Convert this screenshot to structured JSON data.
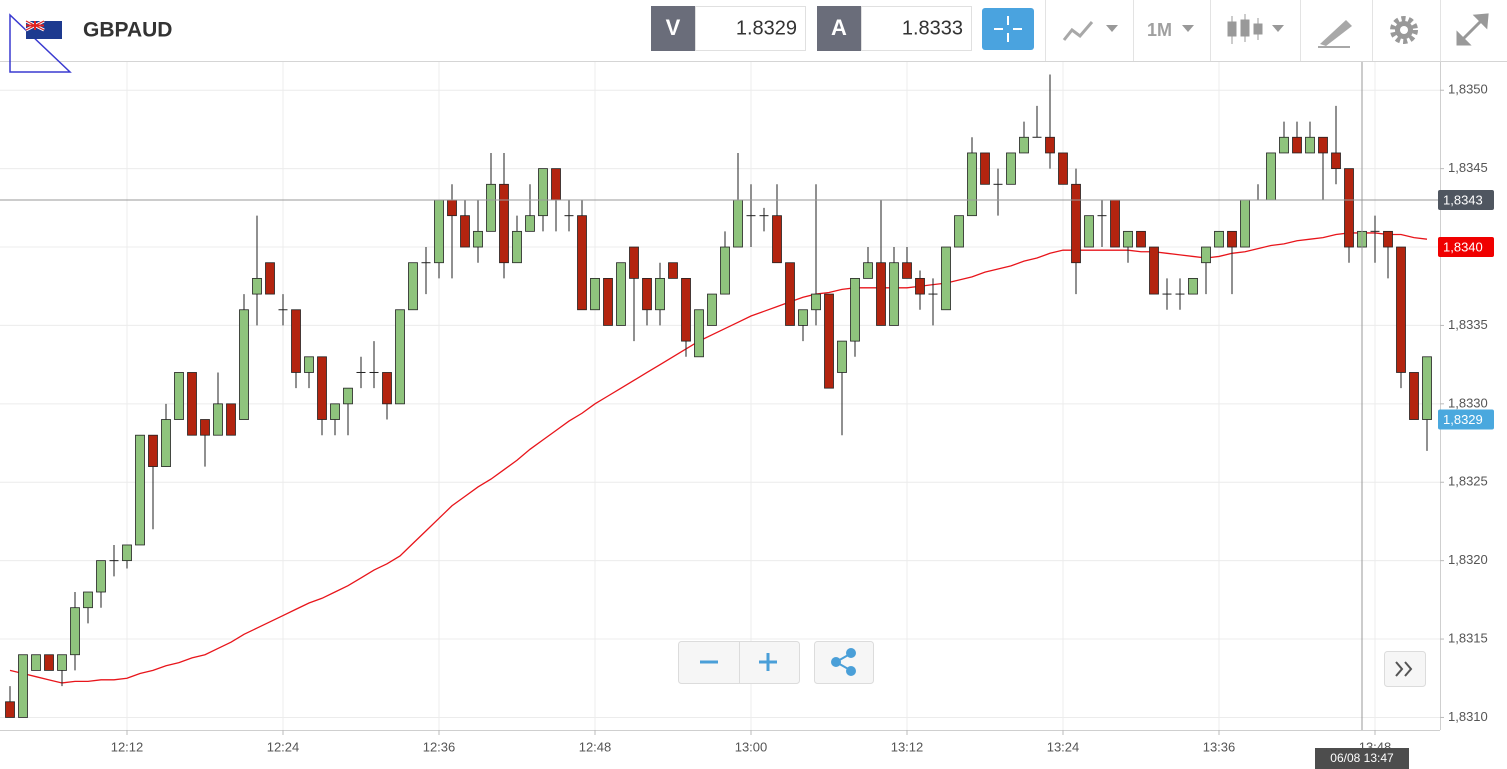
{
  "header": {
    "symbol": "GBPAUD",
    "bid_label": "V",
    "bid": 1.8329,
    "ask_label": "A",
    "ask": 1.8333,
    "timeframe": "1M"
  },
  "chart_data": {
    "type": "candlestick",
    "x": [
      "12:03",
      "12:04",
      "12:05",
      "12:06",
      "12:07",
      "12:08",
      "12:09",
      "12:10",
      "12:11",
      "12:12",
      "12:13",
      "12:14",
      "12:15",
      "12:16",
      "12:17",
      "12:18",
      "12:19",
      "12:20",
      "12:21",
      "12:22",
      "12:23",
      "12:24",
      "12:25",
      "12:26",
      "12:27",
      "12:28",
      "12:29",
      "12:30",
      "12:31",
      "12:32",
      "12:33",
      "12:34",
      "12:35",
      "12:36",
      "12:37",
      "12:38",
      "12:39",
      "12:40",
      "12:41",
      "12:42",
      "12:43",
      "12:44",
      "12:45",
      "12:46",
      "12:47",
      "12:48",
      "12:49",
      "12:50",
      "12:51",
      "12:52",
      "12:53",
      "12:54",
      "12:55",
      "12:56",
      "12:57",
      "12:58",
      "12:59",
      "13:00",
      "13:01",
      "13:02",
      "13:03",
      "13:04",
      "13:05",
      "13:06",
      "13:07",
      "13:08",
      "13:09",
      "13:10",
      "13:11",
      "13:12",
      "13:13",
      "13:14",
      "13:15",
      "13:16",
      "13:17",
      "13:18",
      "13:19",
      "13:20",
      "13:21",
      "13:22",
      "13:23",
      "13:24",
      "13:25",
      "13:26",
      "13:27",
      "13:28",
      "13:29",
      "13:30",
      "13:31",
      "13:32",
      "13:33",
      "13:34",
      "13:35",
      "13:36",
      "13:37",
      "13:38",
      "13:39",
      "13:40",
      "13:41",
      "13:42",
      "13:43",
      "13:44",
      "13:45",
      "13:46",
      "13:47",
      "13:48",
      "13:49",
      "13:50",
      "13:51",
      "13:52"
    ],
    "open": [
      1.8311,
      1.831,
      1.8313,
      1.8314,
      1.8313,
      1.8314,
      1.8317,
      1.8318,
      1.832,
      1.832,
      1.8321,
      1.8328,
      1.8326,
      1.8329,
      1.8332,
      1.8329,
      1.8328,
      1.833,
      1.8329,
      1.8337,
      1.8339,
      1.8336,
      1.8336,
      1.8332,
      1.8333,
      1.8329,
      1.833,
      1.8332,
      1.8332,
      1.8332,
      1.833,
      1.8336,
      1.8339,
      1.8339,
      1.8343,
      1.8342,
      1.834,
      1.8341,
      1.8344,
      1.8339,
      1.8341,
      1.8342,
      1.8345,
      1.8342,
      1.8342,
      1.8336,
      1.8338,
      1.8335,
      1.834,
      1.8338,
      1.8336,
      1.8339,
      1.8338,
      1.8333,
      1.8335,
      1.8337,
      1.834,
      1.8342,
      1.8342,
      1.8342,
      1.8339,
      1.8335,
      1.8336,
      1.8337,
      1.8332,
      1.8334,
      1.8338,
      1.8339,
      1.8335,
      1.8339,
      1.8338,
      1.8337,
      1.8336,
      1.834,
      1.8342,
      1.8346,
      1.8344,
      1.8344,
      1.8346,
      1.8347,
      1.8347,
      1.8346,
      1.8344,
      1.834,
      1.8342,
      1.8343,
      1.834,
      1.8341,
      1.834,
      1.8337,
      1.8337,
      1.8337,
      1.8339,
      1.834,
      1.8341,
      1.834,
      1.8343,
      1.8343,
      1.8346,
      1.8347,
      1.8346,
      1.8347,
      1.8346,
      1.8345,
      1.834,
      1.8341,
      1.8341,
      1.834,
      1.8332,
      1.8329
    ],
    "high": [
      1.8312,
      1.8314,
      1.8314,
      1.8314,
      1.8314,
      1.8318,
      1.8318,
      1.832,
      1.8321,
      1.8321,
      1.8328,
      1.8328,
      1.833,
      1.8332,
      1.8332,
      1.8329,
      1.8332,
      1.833,
      1.8337,
      1.8342,
      1.8339,
      1.8337,
      1.8336,
      1.8333,
      1.8333,
      1.833,
      1.8331,
      1.8333,
      1.8334,
      1.8332,
      1.8336,
      1.8339,
      1.834,
      1.8343,
      1.8344,
      1.8343,
      1.8343,
      1.8346,
      1.8346,
      1.8342,
      1.8344,
      1.8345,
      1.8345,
      1.8343,
      1.8343,
      1.8338,
      1.8338,
      1.8339,
      1.834,
      1.8338,
      1.8339,
      1.8339,
      1.8338,
      1.8336,
      1.8337,
      1.8341,
      1.8346,
      1.8344,
      1.83425,
      1.8344,
      1.8339,
      1.8336,
      1.8344,
      1.8337,
      1.8334,
      1.8338,
      1.834,
      1.8343,
      1.834,
      1.834,
      1.83385,
      1.8338,
      1.834,
      1.8342,
      1.8347,
      1.8346,
      1.8345,
      1.8346,
      1.8348,
      1.8349,
      1.8351,
      1.8346,
      1.8345,
      1.8342,
      1.8343,
      1.8343,
      1.8341,
      1.8341,
      1.834,
      1.8338,
      1.8338,
      1.8338,
      1.834,
      1.8341,
      1.8341,
      1.8343,
      1.8344,
      1.8346,
      1.8348,
      1.8348,
      1.8348,
      1.8347,
      1.8349,
      1.8345,
      1.8341,
      1.8342,
      1.8341,
      1.834,
      1.8332,
      1.8333
    ],
    "low": [
      1.831,
      1.831,
      1.8313,
      1.8313,
      1.8312,
      1.8313,
      1.8316,
      1.8317,
      1.8319,
      1.83195,
      1.8321,
      1.8322,
      1.8326,
      1.8329,
      1.8328,
      1.8326,
      1.8328,
      1.8328,
      1.8329,
      1.8335,
      1.8337,
      1.8335,
      1.8331,
      1.8331,
      1.8328,
      1.8328,
      1.8328,
      1.8331,
      1.8331,
      1.8329,
      1.833,
      1.8336,
      1.8337,
      1.8338,
      1.8338,
      1.834,
      1.8339,
      1.8341,
      1.8338,
      1.8339,
      1.8341,
      1.8341,
      1.8341,
      1.8341,
      1.8336,
      1.8336,
      1.8335,
      1.8335,
      1.8334,
      1.8335,
      1.8335,
      1.8338,
      1.8333,
      1.8333,
      1.8335,
      1.8337,
      1.834,
      1.834,
      1.8341,
      1.8339,
      1.8335,
      1.8334,
      1.8335,
      1.8331,
      1.8328,
      1.8333,
      1.8338,
      1.8335,
      1.8335,
      1.8338,
      1.8336,
      1.8335,
      1.8336,
      1.834,
      1.8342,
      1.8344,
      1.8342,
      1.8344,
      1.8346,
      1.8347,
      1.8345,
      1.8344,
      1.8337,
      1.834,
      1.834,
      1.834,
      1.8339,
      1.834,
      1.8337,
      1.8336,
      1.8336,
      1.8337,
      1.8337,
      1.834,
      1.8337,
      1.834,
      1.8343,
      1.8343,
      1.8346,
      1.8346,
      1.8346,
      1.8343,
      1.8344,
      1.8339,
      1.834,
      1.8339,
      1.8338,
      1.8331,
      1.8329,
      1.8327
    ],
    "close": [
      1.831,
      1.8314,
      1.8314,
      1.8313,
      1.8314,
      1.8317,
      1.8318,
      1.832,
      1.832,
      1.8321,
      1.8328,
      1.8326,
      1.8329,
      1.8332,
      1.8328,
      1.8328,
      1.833,
      1.8328,
      1.8336,
      1.8338,
      1.8337,
      1.8336,
      1.8332,
      1.8333,
      1.8329,
      1.833,
      1.8331,
      1.8332,
      1.8332,
      1.833,
      1.8336,
      1.8339,
      1.8339,
      1.8343,
      1.8342,
      1.834,
      1.8341,
      1.8344,
      1.8339,
      1.8341,
      1.8342,
      1.8345,
      1.8343,
      1.8342,
      1.8336,
      1.8338,
      1.8335,
      1.8339,
      1.8338,
      1.8336,
      1.8338,
      1.8338,
      1.8334,
      1.8336,
      1.8337,
      1.834,
      1.8343,
      1.8342,
      1.8342,
      1.8339,
      1.8335,
      1.8336,
      1.8337,
      1.8331,
      1.8334,
      1.8338,
      1.8339,
      1.8335,
      1.8339,
      1.8338,
      1.8337,
      1.8337,
      1.834,
      1.8342,
      1.8346,
      1.8344,
      1.8344,
      1.8346,
      1.8347,
      1.8347,
      1.8346,
      1.8344,
      1.8339,
      1.8342,
      1.8342,
      1.834,
      1.8341,
      1.834,
      1.8337,
      1.8337,
      1.8337,
      1.8338,
      1.834,
      1.8341,
      1.834,
      1.8343,
      1.8343,
      1.8346,
      1.8347,
      1.8346,
      1.8347,
      1.8346,
      1.8345,
      1.834,
      1.8341,
      1.8341,
      1.834,
      1.8332,
      1.8329,
      1.8333
    ],
    "up_color": "#8fc47d",
    "down_color": "#b3240f",
    "overlay": {
      "type": "line",
      "color": "#e8151b",
      "values": [
        1.8313,
        1.83128,
        1.83126,
        1.83124,
        1.83122,
        1.83123,
        1.83123,
        1.83124,
        1.83124,
        1.83125,
        1.83128,
        1.8313,
        1.83133,
        1.83135,
        1.83138,
        1.8314,
        1.83144,
        1.83148,
        1.83153,
        1.83157,
        1.83161,
        1.83165,
        1.83169,
        1.83173,
        1.83176,
        1.8318,
        1.83184,
        1.83189,
        1.83194,
        1.83198,
        1.83203,
        1.83211,
        1.83219,
        1.83227,
        1.83235,
        1.83241,
        1.83247,
        1.83252,
        1.83258,
        1.83264,
        1.83271,
        1.83277,
        1.83283,
        1.83289,
        1.83294,
        1.833,
        1.83305,
        1.8331,
        1.83315,
        1.8332,
        1.83325,
        1.8333,
        1.83335,
        1.8334,
        1.83344,
        1.83348,
        1.83352,
        1.83356,
        1.83359,
        1.83362,
        1.83365,
        1.83368,
        1.8337,
        1.83371,
        1.83373,
        1.83374,
        1.83374,
        1.83374,
        1.83374,
        1.83374,
        1.83375,
        1.83376,
        1.83377,
        1.83379,
        1.83381,
        1.83384,
        1.83386,
        1.83388,
        1.83391,
        1.83393,
        1.83396,
        1.83398,
        1.83398,
        1.83398,
        1.83398,
        1.83398,
        1.83398,
        1.83397,
        1.83397,
        1.83396,
        1.83395,
        1.83394,
        1.83393,
        1.83394,
        1.83396,
        1.83397,
        1.83399,
        1.83401,
        1.83402,
        1.83404,
        1.83405,
        1.83406,
        1.83408,
        1.83409,
        1.83409,
        1.83409,
        1.83408,
        1.83408,
        1.83406,
        1.83405
      ]
    },
    "ylim": [
      1.83092,
      1.83518
    ],
    "yticks": [
      {
        "value": 1.831,
        "label": "1,8310"
      },
      {
        "value": 1.8315,
        "label": "1,8315"
      },
      {
        "value": 1.832,
        "label": "1,8320"
      },
      {
        "value": 1.8325,
        "label": "1,8325"
      },
      {
        "value": 1.833,
        "label": "1,8330"
      },
      {
        "value": 1.8335,
        "label": "1,8335"
      },
      {
        "value": 1.834,
        "label": "1,8340"
      },
      {
        "value": 1.8345,
        "label": "1,8345"
      },
      {
        "value": 1.835,
        "label": "1,8350"
      }
    ],
    "xticks": [
      "12:12",
      "12:24",
      "12:36",
      "12:48",
      "13:00",
      "13:12",
      "13:24",
      "13:36",
      "13:48"
    ],
    "grid": true,
    "price_tags": [
      {
        "value": 1.8343,
        "label": "1,8343",
        "color": "#4f5660"
      },
      {
        "value": 1.834,
        "label": "1,8340",
        "color": "#f00000"
      },
      {
        "value": 1.8329,
        "label": "1,8329",
        "color": "#4aa8de"
      }
    ],
    "crosshair": {
      "label": "06/08 13:47",
      "y": 1.8343
    }
  }
}
